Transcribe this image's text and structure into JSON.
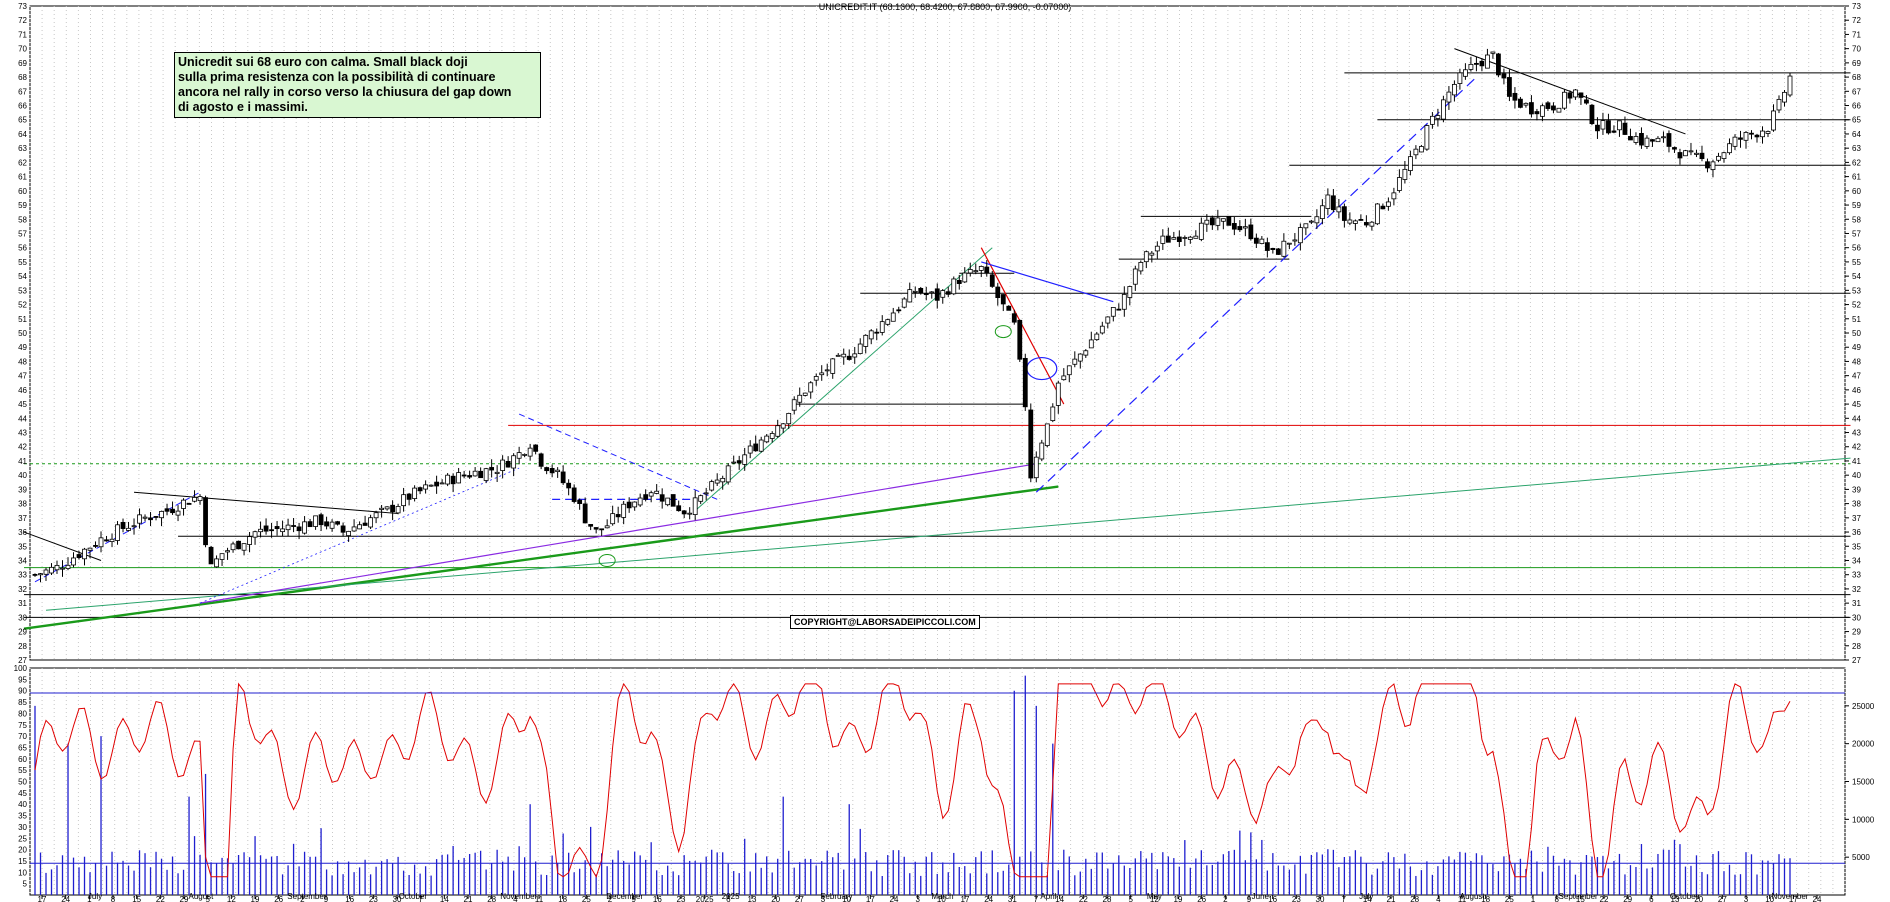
{
  "chart_data": [
    {
      "type": "candlestick",
      "title": "UNICREDIT.IT (68.1600, 68.4200, 67.8800, 67.9900, -0.07000)",
      "annotation": "Unicredit sui 68 euro con calma. Small black doji\nsulla prima resistenza con la possibilità di continuare\nancora nel rally in corso verso la chiusura del gap down\ndi agosto e i massimi.",
      "copyright": "COPYRIGHT@LABORSADEIPICCOLI.COM",
      "ylim": [
        27,
        73
      ],
      "y_ticks": [
        27,
        28,
        29,
        30,
        31,
        32,
        33,
        34,
        35,
        36,
        37,
        38,
        39,
        40,
        41,
        42,
        43,
        44,
        45,
        46,
        47,
        48,
        49,
        50,
        51,
        52,
        53,
        54,
        55,
        56,
        57,
        58,
        59,
        60,
        61,
        62,
        63,
        64,
        65,
        66,
        67,
        68,
        69,
        70,
        71,
        72,
        73
      ],
      "price_path": [
        [
          0,
          33.0
        ],
        [
          4,
          33.5
        ],
        [
          8,
          34.5
        ],
        [
          12,
          35.5
        ],
        [
          16,
          36.3
        ],
        [
          20,
          37.0
        ],
        [
          24,
          37.5
        ],
        [
          28,
          38.3
        ],
        [
          30,
          38.5
        ],
        [
          31,
          35.5
        ],
        [
          32,
          33.5
        ],
        [
          34,
          34.5
        ],
        [
          37,
          35.2
        ],
        [
          40,
          36.0
        ],
        [
          44,
          36.2
        ],
        [
          48,
          36.5
        ],
        [
          52,
          36.8
        ],
        [
          56,
          36.0
        ],
        [
          60,
          36.8
        ],
        [
          64,
          37.5
        ],
        [
          68,
          38.5
        ],
        [
          72,
          39.2
        ],
        [
          76,
          39.8
        ],
        [
          80,
          40.2
        ],
        [
          84,
          40.5
        ],
        [
          86,
          41.0
        ],
        [
          88,
          41.5
        ],
        [
          90,
          42.3
        ],
        [
          92,
          41.0
        ],
        [
          95,
          40.0
        ],
        [
          98,
          38.5
        ],
        [
          100,
          37.0
        ],
        [
          102,
          36.0
        ],
        [
          104,
          36.5
        ],
        [
          108,
          38.0
        ],
        [
          112,
          39.0
        ],
        [
          116,
          38.0
        ],
        [
          118,
          37.5
        ],
        [
          120,
          38.0
        ],
        [
          124,
          39.5
        ],
        [
          128,
          41.0
        ],
        [
          132,
          42.5
        ],
        [
          136,
          44.0
        ],
        [
          140,
          46.0
        ],
        [
          144,
          47.5
        ],
        [
          148,
          48.5
        ],
        [
          152,
          50.0
        ],
        [
          156,
          51.5
        ],
        [
          160,
          53.0
        ],
        [
          164,
          52.5
        ],
        [
          168,
          53.8
        ],
        [
          172,
          54.5
        ],
        [
          175,
          52.5
        ],
        [
          178,
          50.5
        ],
        [
          180,
          45.0
        ],
        [
          181,
          40.0
        ],
        [
          182,
          41.5
        ],
        [
          184,
          43.5
        ],
        [
          186,
          46.5
        ],
        [
          189,
          48.0
        ],
        [
          192,
          49.5
        ],
        [
          195,
          51.0
        ],
        [
          198,
          52.5
        ],
        [
          201,
          55.0
        ],
        [
          205,
          56.5
        ],
        [
          209,
          57.0
        ],
        [
          213,
          57.5
        ],
        [
          217,
          57.8
        ],
        [
          221,
          57.0
        ],
        [
          225,
          55.5
        ],
        [
          228,
          56.5
        ],
        [
          232,
          57.5
        ],
        [
          235,
          59.5
        ],
        [
          238,
          58.0
        ],
        [
          242,
          57.8
        ],
        [
          246,
          59.5
        ],
        [
          250,
          62.0
        ],
        [
          254,
          65.0
        ],
        [
          258,
          67.5
        ],
        [
          262,
          69.0
        ],
        [
          265,
          69.5
        ],
        [
          268,
          66.5
        ],
        [
          272,
          65.8
        ],
        [
          276,
          66.0
        ],
        [
          280,
          67.0
        ],
        [
          284,
          64.5
        ],
        [
          288,
          64.5
        ],
        [
          292,
          63.5
        ],
        [
          296,
          63.5
        ],
        [
          300,
          62.5
        ],
        [
          304,
          62.0
        ],
        [
          306,
          62.5
        ],
        [
          309,
          63.5
        ],
        [
          312,
          64.0
        ],
        [
          315,
          64.5
        ],
        [
          317,
          66.0
        ],
        [
          319,
          68.0
        ]
      ],
      "n_bars": 320,
      "volume_ylim": [
        0,
        30000
      ],
      "volume_ticks": [
        5000,
        10000,
        15000,
        20000,
        25000
      ],
      "osc_ylim": [
        0,
        100
      ],
      "osc_ticks": [
        5,
        10,
        15,
        20,
        25,
        30,
        35,
        40,
        45,
        50,
        55,
        60,
        65,
        70,
        75,
        80,
        85,
        90,
        95,
        100
      ],
      "x_day_labels": [
        "17",
        "24",
        "1",
        "8",
        "15",
        "22",
        "29",
        "5",
        "12",
        "19",
        "26",
        "2",
        "9",
        "16",
        "23",
        "30",
        "7",
        "14",
        "21",
        "28",
        "4",
        "11",
        "18",
        "25",
        "2",
        "9",
        "16",
        "23",
        "2025",
        "6",
        "13",
        "20",
        "27",
        "3",
        "10",
        "17",
        "24",
        "3",
        "10",
        "17",
        "24",
        "31",
        "7",
        "14",
        "22",
        "28",
        "5",
        "12",
        "19",
        "26",
        "2",
        "9",
        "16",
        "23",
        "30",
        "7",
        "14",
        "21",
        "28",
        "4",
        "11",
        "18",
        "25",
        "1",
        "8",
        "15",
        "22",
        "29",
        "6",
        "13",
        "20",
        "27",
        "3",
        "10",
        "17",
        "24"
      ],
      "x_month_labels": [
        "July",
        "August",
        "September",
        "October",
        "November",
        "December",
        "2025",
        "February",
        "March",
        "April",
        "May",
        "June",
        "July",
        "August",
        "September",
        "October",
        "November"
      ],
      "colors": {
        "candle": "#000000",
        "volume": "#1f1fcf",
        "oscillator": "#e00000",
        "support_green": "#1a9a1a",
        "trend_blue": "#2020ff",
        "resistance_red": "#e00000",
        "purple": "#8a2be2",
        "note_bg": "#d9f7d2",
        "teal": "#2ba36b"
      }
    }
  ]
}
